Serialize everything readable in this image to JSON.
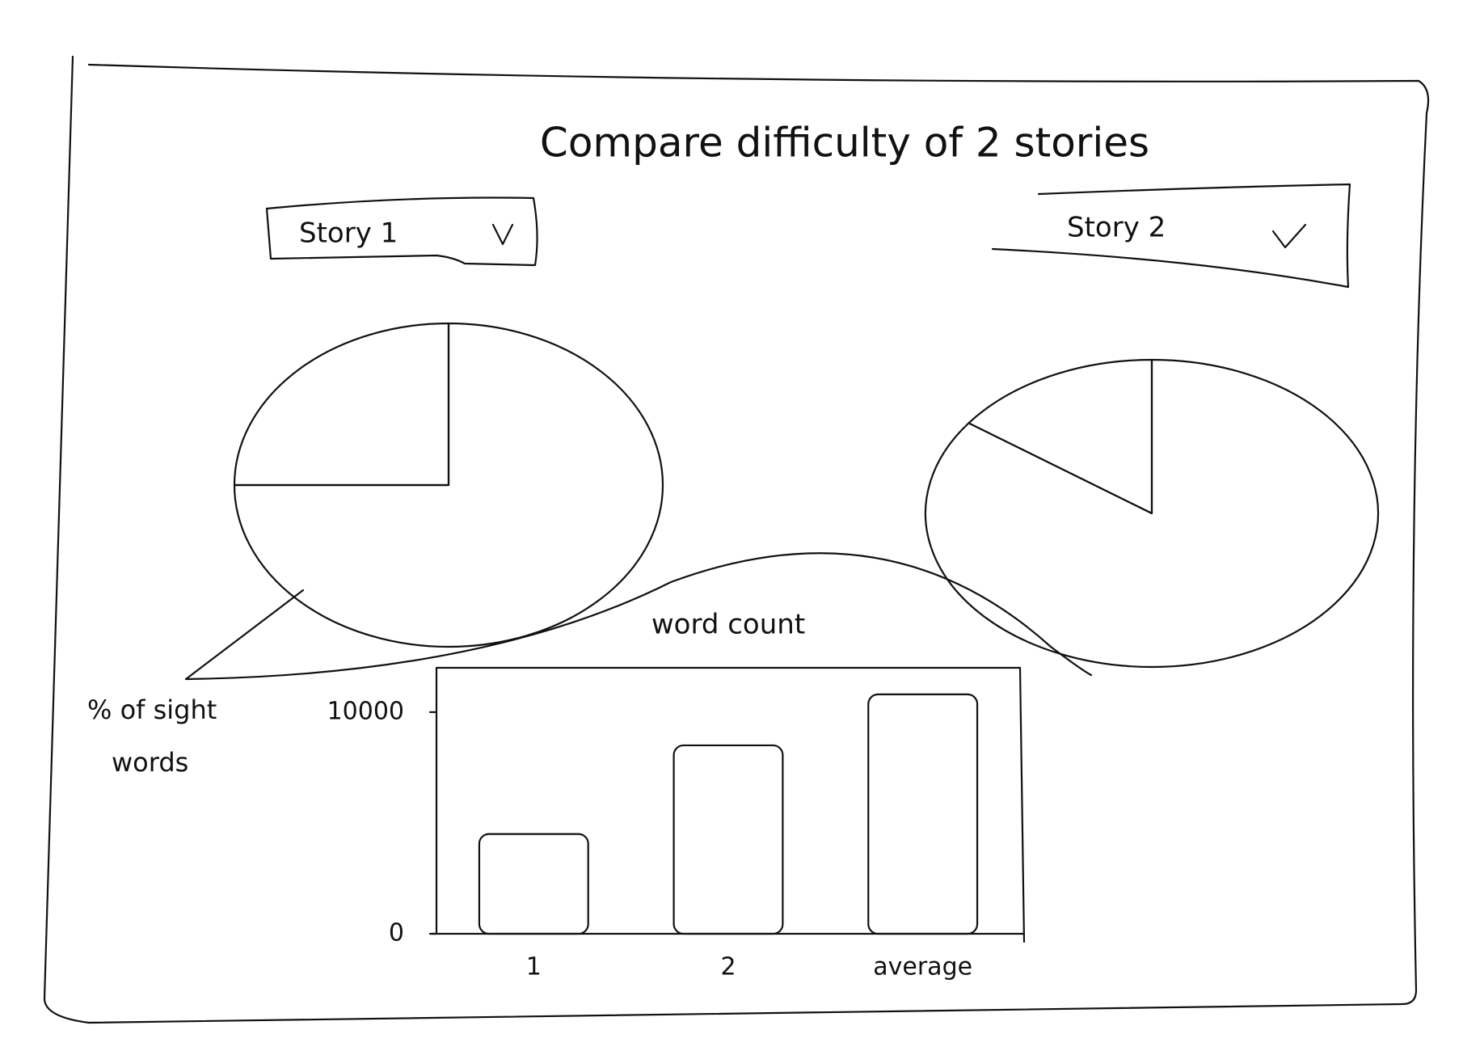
{
  "title": "Compare difficulty of 2 stories",
  "dropdowns": [
    {
      "label": "Story 1"
    },
    {
      "label": "Story 2"
    }
  ],
  "callout": {
    "lines": [
      "% of sight",
      "words"
    ]
  },
  "chart_data": [
    {
      "type": "pie",
      "values": [
        25,
        75
      ]
    },
    {
      "type": "pie",
      "values": [
        15,
        85
      ]
    },
    {
      "type": "bar",
      "title": "word count",
      "categories": [
        "1",
        "2",
        "average"
      ],
      "values": [
        4500,
        8500,
        10800
      ],
      "ylim": [
        0,
        12000
      ],
      "yticks": [
        0,
        10000
      ]
    }
  ]
}
